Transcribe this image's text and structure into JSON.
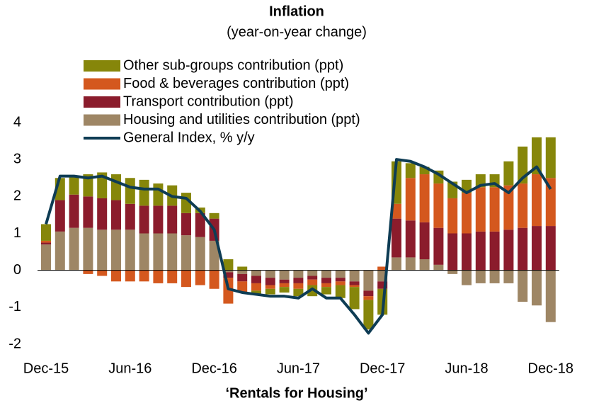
{
  "chart_data": {
    "type": "bar",
    "stacked": true,
    "title": "Inflation",
    "subtitle": "(year-on-year change)",
    "x_label": "‘Rentals for Housing’",
    "categories": [
      "Dec-15",
      null,
      null,
      null,
      null,
      null,
      "Jun-16",
      null,
      null,
      null,
      null,
      null,
      "Dec-16",
      null,
      null,
      null,
      null,
      null,
      "Jun-17",
      null,
      null,
      null,
      null,
      null,
      "Dec-17",
      null,
      null,
      null,
      null,
      null,
      "Jun-18",
      null,
      null,
      null,
      null,
      null,
      "Dec-18"
    ],
    "series": [
      {
        "name": "Other sub-groups contribution (ppt)",
        "color": "#86860a",
        "values": [
          0.45,
          0.6,
          0.5,
          0.6,
          0.7,
          0.7,
          0.7,
          0.7,
          0.6,
          0.55,
          0.55,
          0.15,
          0.15,
          0.3,
          0.1,
          -0.1,
          -0.15,
          -0.15,
          -0.2,
          -0.3,
          -0.2,
          -0.35,
          -0.6,
          -0.8,
          -0.7,
          1.15,
          0.4,
          0.2,
          0.35,
          0.45,
          0.35,
          0.35,
          0.35,
          0.65,
          1.0,
          1.0,
          1.1
        ]
      },
      {
        "name": "Food & beverages contribution (ppt)",
        "color": "#d4581e",
        "values": [
          0.05,
          0.0,
          0.0,
          -0.1,
          -0.15,
          -0.3,
          -0.3,
          -0.3,
          -0.35,
          -0.35,
          -0.45,
          -0.4,
          -0.5,
          -0.7,
          -0.3,
          -0.2,
          -0.1,
          -0.1,
          -0.15,
          -0.15,
          -0.1,
          -0.1,
          -0.05,
          -0.1,
          0.1,
          0.4,
          1.15,
          1.3,
          1.2,
          0.95,
          1.1,
          1.2,
          1.2,
          1.2,
          1.2,
          1.4,
          1.3
        ]
      },
      {
        "name": "Transport contribution (ppt)",
        "color": "#8b1c2c",
        "values": [
          0.05,
          0.85,
          0.9,
          0.85,
          0.85,
          0.8,
          0.7,
          0.75,
          0.75,
          0.75,
          0.6,
          0.65,
          0.6,
          -0.15,
          -0.2,
          -0.2,
          -0.2,
          -0.1,
          -0.15,
          -0.1,
          -0.15,
          -0.1,
          -0.1,
          -0.15,
          -0.2,
          1.05,
          1.0,
          1.0,
          1.0,
          1.0,
          1.0,
          1.05,
          1.05,
          1.1,
          1.15,
          1.2,
          1.2
        ]
      },
      {
        "name": "Housing and utilities contribution (ppt)",
        "color": "#9e8665",
        "values": [
          0.7,
          1.05,
          1.15,
          1.15,
          1.1,
          1.1,
          1.1,
          1.0,
          1.0,
          1.0,
          0.95,
          0.9,
          0.8,
          -0.05,
          -0.1,
          -0.15,
          -0.2,
          -0.25,
          -0.2,
          -0.15,
          -0.2,
          -0.2,
          -0.3,
          -0.55,
          -0.3,
          0.35,
          0.35,
          0.3,
          0.15,
          -0.1,
          -0.4,
          -0.35,
          -0.35,
          -0.35,
          -0.85,
          -0.95,
          -1.4
        ]
      },
      {
        "name": "General Index, % y/y",
        "color": "#0e3c54",
        "type": "line",
        "values": [
          1.25,
          2.55,
          2.55,
          2.5,
          2.55,
          2.4,
          2.25,
          2.2,
          2.2,
          2.0,
          1.95,
          1.6,
          1.1,
          -0.5,
          -0.6,
          -0.65,
          -0.7,
          -0.7,
          -0.75,
          -0.5,
          -0.75,
          -0.75,
          -1.2,
          -1.7,
          -1.2,
          3.0,
          2.95,
          2.8,
          2.6,
          2.35,
          2.1,
          2.3,
          2.35,
          2.1,
          2.5,
          2.8,
          2.2
        ]
      }
    ],
    "ylim": [
      -2,
      4
    ],
    "yticks": [
      -2,
      -1,
      0,
      1,
      2,
      3,
      4
    ]
  }
}
